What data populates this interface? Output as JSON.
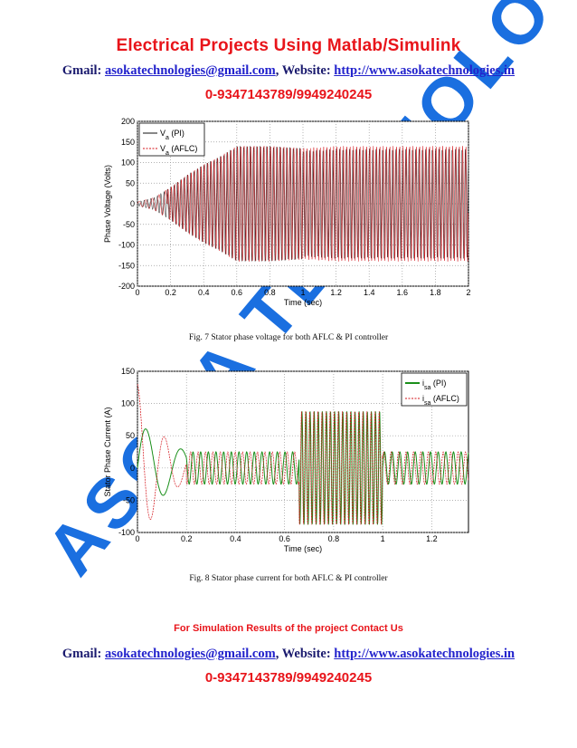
{
  "header": {
    "title": "Electrical Projects Using Matlab/Simulink",
    "gmail_label": "Gmail:",
    "email": "asokatechnologies@gmail.com",
    "website_label": ", Website:",
    "website": "http://www.asokatechnologies.in",
    "phone": "0-9347143789/9949240245"
  },
  "colors": {
    "accent_red": "#e8141a",
    "link_blue": "#2222cc",
    "pi_green": "#1a8f1a",
    "aflc_red": "#d4141a",
    "watermark": "#1a6fe0"
  },
  "watermark": {
    "text": "ASOKA TECHNOLOGIES"
  },
  "chart_data": [
    {
      "type": "line",
      "ylabel": "Phase Voltage (Volts)",
      "xlabel": "Time (sec)",
      "xlim": [
        0,
        2
      ],
      "ylim": [
        -200,
        200
      ],
      "xticks": [
        "0",
        "0.2",
        "0.4",
        "0.6",
        "0.8",
        "1",
        "1.2",
        "1.4",
        "1.6",
        "1.8",
        "2"
      ],
      "yticks": [
        "200",
        "150",
        "100",
        "50",
        "0",
        "-50",
        "-100",
        "-150",
        "-200"
      ],
      "grid": true,
      "legend_position": "top-left",
      "series": [
        {
          "name": "V",
          "sub": "a",
          "suffix": " (PI)"
        },
        {
          "name": "V",
          "sub": "a",
          "suffix": " (AFLC)"
        }
      ],
      "envelope": {
        "x": [
          0,
          0.1,
          0.2,
          0.3,
          0.4,
          0.5,
          0.6,
          0.8,
          1.0,
          1.2,
          2.0
        ],
        "amp": [
          5,
          15,
          40,
          70,
          95,
          115,
          140,
          140,
          135,
          140,
          140
        ]
      }
    },
    {
      "type": "line",
      "ylabel": "Stator Phase Current (A)",
      "xlabel": "Time (sec)",
      "xlim": [
        0,
        1.35
      ],
      "ylim": [
        -100,
        150
      ],
      "xticks": [
        "0",
        "0.2",
        "0.4",
        "0.6",
        "0.8",
        "1",
        "1.2"
      ],
      "yticks": [
        "150",
        "100",
        "50",
        "0",
        "-50",
        "-100"
      ],
      "grid": true,
      "legend_position": "top-right",
      "series": [
        {
          "name": "i",
          "sub": "sa",
          "suffix": " (PI)"
        },
        {
          "name": "i",
          "sub": "sa",
          "suffix": " (AFLC)"
        }
      ],
      "annotations": {
        "aflc_peak": 130,
        "pi_peak": 72,
        "steady_amp": 25,
        "loaded_amp": 88,
        "loaded_window": [
          0.66,
          1.0
        ]
      }
    }
  ],
  "captions": {
    "fig7": "Fig. 7 Stator phase voltage for both AFLC & PI controller",
    "fig8": "Fig. 8 Stator phase current for both AFLC & PI controller"
  },
  "footer": {
    "contact": "For Simulation Results of the project Contact Us",
    "gmail_label": "Gmail:",
    "email": "asokatechnologies@gmail.com",
    "website_label": ", Website:",
    "website": "http://www.asokatechnologies.in",
    "phone": "0-9347143789/9949240245"
  }
}
